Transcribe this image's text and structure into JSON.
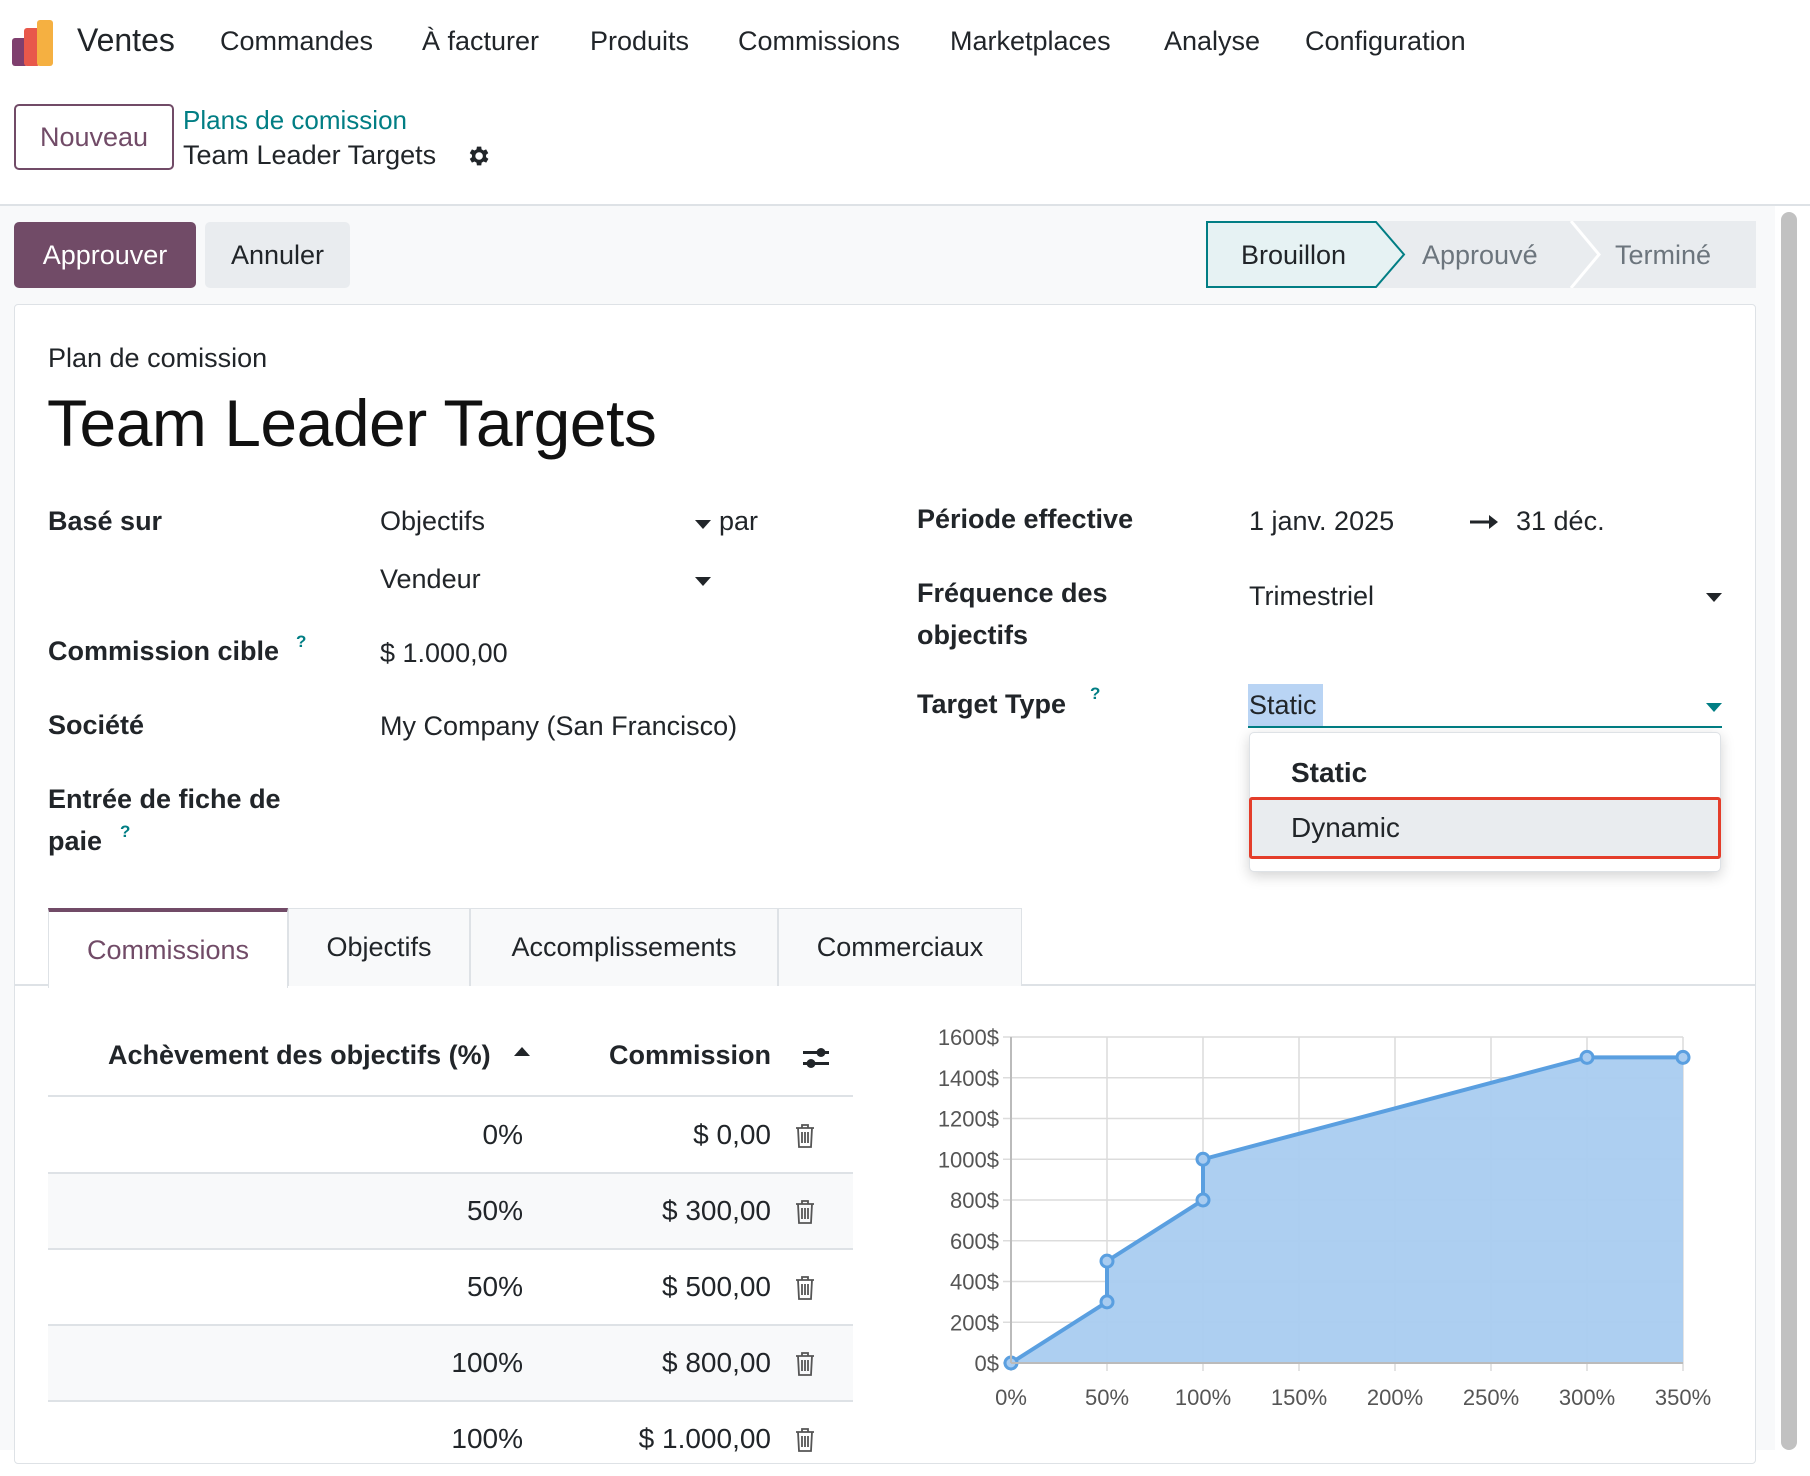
{
  "navbar": {
    "app_name": "Ventes",
    "menu": [
      "Commandes",
      "À facturer",
      "Produits",
      "Commissions",
      "Marketplaces",
      "Analyse",
      "Configuration"
    ]
  },
  "control_panel": {
    "new_button": "Nouveau",
    "breadcrumb_parent": "Plans de comission",
    "breadcrumb_current": "Team Leader Targets"
  },
  "statusbar": {
    "approve_button": "Approuver",
    "cancel_button": "Annuler",
    "stages": [
      "Brouillon",
      "Approuvé",
      "Terminé"
    ],
    "active_stage": "Brouillon"
  },
  "form": {
    "record_label": "Plan de comission",
    "title": "Team Leader Targets",
    "based_on_label": "Basé sur",
    "based_on_value": "Objectifs",
    "by_label": "par",
    "by_value": "Vendeur",
    "target_commission_label": "Commission cible",
    "target_commission_value": "$ 1.000,00",
    "company_label": "Société",
    "company_value": "My Company (San Francisco)",
    "payslip_label_line1": "Entrée de fiche de",
    "payslip_label_line2": "paie",
    "effective_period_label": "Période effective",
    "period_start": "1 janv. 2025",
    "period_end": "31 déc.",
    "frequency_label_line1": "Fréquence des",
    "frequency_label_line2": "objectifs",
    "frequency_value": "Trimestriel",
    "target_type_label": "Target Type",
    "target_type_value": "Static",
    "help_mark": "?"
  },
  "dropdown": {
    "options": [
      "Static",
      "Dynamic"
    ],
    "hovered": "Dynamic"
  },
  "tabs": [
    "Commissions",
    "Objectifs",
    "Accomplissements",
    "Commerciaux"
  ],
  "active_tab": "Commissions",
  "table": {
    "headers": [
      "Achèvement des objectifs (%)",
      "Commission"
    ],
    "rows": [
      {
        "achievement": "0%",
        "commission": "$ 0,00"
      },
      {
        "achievement": "50%",
        "commission": "$ 300,00"
      },
      {
        "achievement": "50%",
        "commission": "$ 500,00"
      },
      {
        "achievement": "100%",
        "commission": "$ 800,00"
      },
      {
        "achievement": "100%",
        "commission": "$ 1.000,00"
      }
    ]
  },
  "chart_data": {
    "type": "area",
    "x": [
      0,
      50,
      50,
      100,
      100,
      300,
      350
    ],
    "y": [
      0,
      300,
      500,
      800,
      1000,
      1500,
      1500
    ],
    "x_ticks": [
      "0%",
      "50%",
      "100%",
      "150%",
      "200%",
      "250%",
      "300%",
      "350%"
    ],
    "y_ticks": [
      "0$",
      "200$",
      "400$",
      "600$",
      "800$",
      "1000$",
      "1200$",
      "1400$",
      "1600$"
    ],
    "xlim": [
      0,
      350
    ],
    "ylim": [
      0,
      1600
    ],
    "grid": true,
    "colors": {
      "line": "#5a9fe0",
      "fill": "#a9ccf0"
    }
  },
  "colors": {
    "brand": "#714b67",
    "link": "#017e84",
    "highlight_box": "#e43d2a"
  },
  "icons": {
    "settings": "gear-icon",
    "delete": "trash-icon",
    "optional_columns": "sliders-icon",
    "arrow": "arrow-right-icon"
  }
}
